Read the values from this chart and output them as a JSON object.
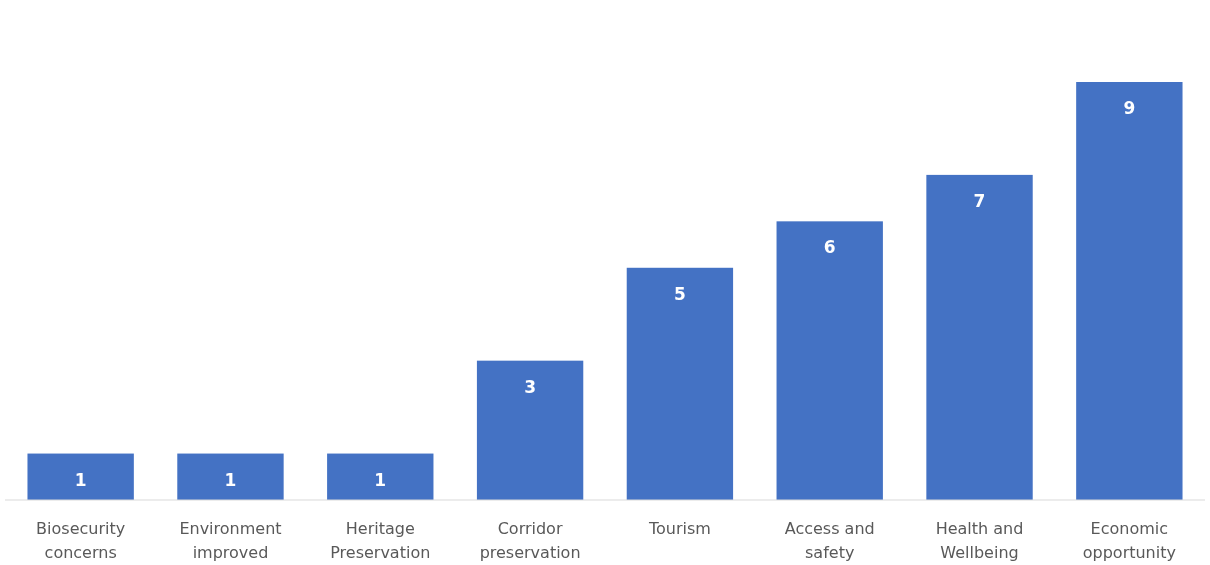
{
  "chart_data": {
    "type": "bar",
    "categories": [
      "Biosecurity\nconcerns",
      "Environment\nimproved",
      "Heritage\nPreservation",
      "Corridor\npreservation",
      "Tourism",
      "Access and\nsafety",
      "Health and\nWellbeing",
      "Economic\nopportunity"
    ],
    "values": [
      1,
      1,
      1,
      3,
      5,
      6,
      7,
      9
    ],
    "color": "#4472c4",
    "data_labels": true
  }
}
